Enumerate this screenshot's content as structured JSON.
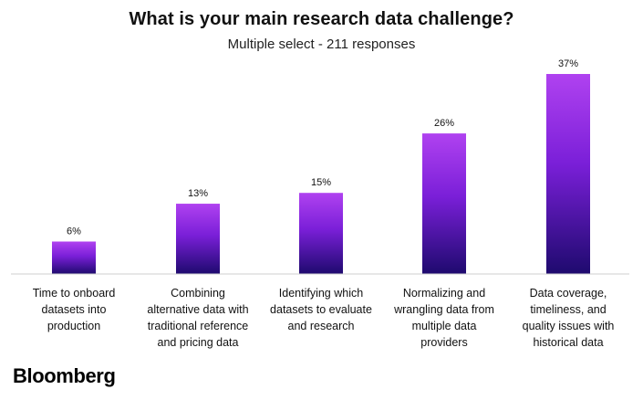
{
  "header": {
    "title": "What is your main research data challenge?",
    "subtitle": "Multiple select - 211 responses"
  },
  "footer": {
    "brand": "Bloomberg"
  },
  "colors": {
    "bar_top": "#b042f0",
    "bar_mid": "#7a1fd8",
    "bar_bottom": "#1e0a6e",
    "baseline": "#cfcfcf",
    "text": "#111111"
  },
  "chart_data": {
    "type": "bar",
    "title": "What is your main research data challenge?",
    "subtitle": "Multiple select - 211 responses",
    "categories": [
      [
        "Time to onboard",
        "datasets into",
        "production"
      ],
      [
        "Combining",
        "alternative data with",
        "traditional reference",
        "and pricing data"
      ],
      [
        "Identifying which",
        "datasets to evaluate",
        "and research"
      ],
      [
        "Normalizing and",
        "wrangling data from",
        "multiple data",
        "providers"
      ],
      [
        "Data coverage,",
        "timeliness, and",
        "quality issues with",
        "historical data"
      ]
    ],
    "values": [
      6,
      13,
      15,
      26,
      37
    ],
    "value_labels": [
      "6%",
      "13%",
      "15%",
      "26%",
      "37%"
    ],
    "unit": "%",
    "ylim": [
      0,
      37
    ],
    "grid": false,
    "legend": "none"
  }
}
